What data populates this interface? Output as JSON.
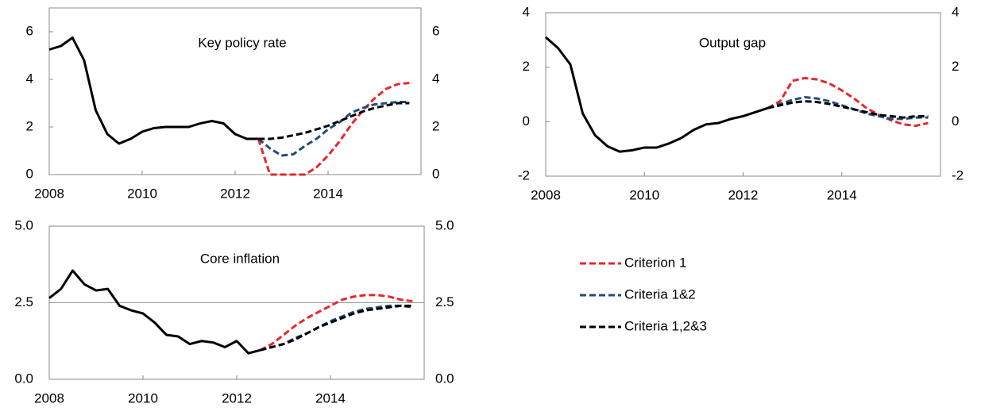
{
  "chart_data": [
    {
      "type": "line",
      "title": "Key policy rate",
      "x": [
        2008,
        2008.25,
        2008.5,
        2008.75,
        2009,
        2009.25,
        2009.5,
        2009.75,
        2010,
        2010.25,
        2010.5,
        2010.75,
        2011,
        2011.25,
        2011.5,
        2011.75,
        2012,
        2012.25,
        2012.5,
        2012.75,
        2013,
        2013.25,
        2013.5,
        2013.75,
        2014,
        2014.25,
        2014.5,
        2014.75,
        2015,
        2015.25,
        2015.5,
        2015.75
      ],
      "xlim": [
        2008,
        2016
      ],
      "xticks": [
        2008,
        2010,
        2012,
        2014
      ],
      "ylim": [
        0,
        7
      ],
      "yticks": [
        0,
        2,
        4,
        6
      ],
      "series": [
        {
          "color": "#000000",
          "values": [
            5.25,
            5.4,
            5.75,
            4.8,
            2.7,
            1.7,
            1.3,
            1.5,
            1.8,
            1.95,
            2.0,
            2.0,
            2.0,
            2.15,
            2.25,
            2.15,
            1.7,
            1.5,
            1.5,
            null,
            null,
            null,
            null,
            null,
            null,
            null,
            null,
            null,
            null,
            null,
            null,
            null
          ]
        },
        {
          "color": "#e8262b",
          "dashed": true,
          "values": [
            null,
            null,
            null,
            null,
            null,
            null,
            null,
            null,
            null,
            null,
            null,
            null,
            null,
            null,
            null,
            null,
            null,
            null,
            1.5,
            0,
            0,
            0,
            0,
            0.3,
            0.8,
            1.4,
            2.1,
            2.7,
            3.2,
            3.6,
            3.8,
            3.85
          ]
        },
        {
          "color": "#1f4e79",
          "dashed": true,
          "values": [
            null,
            null,
            null,
            null,
            null,
            null,
            null,
            null,
            null,
            null,
            null,
            null,
            null,
            null,
            null,
            null,
            null,
            null,
            1.5,
            1.1,
            0.8,
            0.85,
            1.2,
            1.5,
            1.9,
            2.2,
            2.6,
            2.8,
            2.95,
            3.0,
            3.05,
            3.05
          ]
        },
        {
          "color": "#000000",
          "dashed": true,
          "values": [
            null,
            null,
            null,
            null,
            null,
            null,
            null,
            null,
            null,
            null,
            null,
            null,
            null,
            null,
            null,
            null,
            null,
            null,
            1.5,
            1.5,
            1.55,
            1.65,
            1.75,
            1.9,
            2.05,
            2.25,
            2.45,
            2.65,
            2.8,
            2.9,
            3.0,
            3.0
          ]
        }
      ]
    },
    {
      "type": "line",
      "title": "Output gap",
      "x": [
        2008,
        2008.25,
        2008.5,
        2008.75,
        2009,
        2009.25,
        2009.5,
        2009.75,
        2010,
        2010.25,
        2010.5,
        2010.75,
        2011,
        2011.25,
        2011.5,
        2011.75,
        2012,
        2012.25,
        2012.5,
        2012.75,
        2013,
        2013.25,
        2013.5,
        2013.75,
        2014,
        2014.25,
        2014.5,
        2014.75,
        2015,
        2015.25,
        2015.5,
        2015.75
      ],
      "xlim": [
        2008,
        2016
      ],
      "xticks": [
        2008,
        2010,
        2012,
        2014
      ],
      "ylim": [
        -2,
        4
      ],
      "yticks": [
        -2,
        0,
        2,
        4
      ],
      "series": [
        {
          "color": "#000000",
          "values": [
            3.1,
            2.7,
            2.1,
            0.3,
            -0.5,
            -0.9,
            -1.1,
            -1.05,
            -0.95,
            -0.95,
            -0.8,
            -0.6,
            -0.3,
            -0.1,
            -0.05,
            0.1,
            0.2,
            0.35,
            0.5,
            null,
            null,
            null,
            null,
            null,
            null,
            null,
            null,
            null,
            null,
            null,
            null,
            null
          ]
        },
        {
          "color": "#e8262b",
          "dashed": true,
          "values": [
            null,
            null,
            null,
            null,
            null,
            null,
            null,
            null,
            null,
            null,
            null,
            null,
            null,
            null,
            null,
            null,
            null,
            null,
            0.5,
            0.75,
            1.5,
            1.6,
            1.55,
            1.4,
            1.15,
            0.85,
            0.5,
            0.25,
            0.05,
            -0.1,
            -0.15,
            -0.05
          ]
        },
        {
          "color": "#1f4e79",
          "dashed": true,
          "values": [
            null,
            null,
            null,
            null,
            null,
            null,
            null,
            null,
            null,
            null,
            null,
            null,
            null,
            null,
            null,
            null,
            null,
            null,
            0.5,
            0.65,
            0.8,
            0.9,
            0.85,
            0.75,
            0.6,
            0.45,
            0.3,
            0.2,
            0.1,
            0.1,
            0.15,
            0.15
          ]
        },
        {
          "color": "#000000",
          "dashed": true,
          "values": [
            null,
            null,
            null,
            null,
            null,
            null,
            null,
            null,
            null,
            null,
            null,
            null,
            null,
            null,
            null,
            null,
            null,
            null,
            0.5,
            0.6,
            0.7,
            0.75,
            0.72,
            0.65,
            0.55,
            0.45,
            0.35,
            0.25,
            0.2,
            0.15,
            0.2,
            0.2
          ]
        }
      ]
    },
    {
      "type": "line",
      "title": "Core inflation",
      "x": [
        2008,
        2008.25,
        2008.5,
        2008.75,
        2009,
        2009.25,
        2009.5,
        2009.75,
        2010,
        2010.25,
        2010.5,
        2010.75,
        2011,
        2011.25,
        2011.5,
        2011.75,
        2012,
        2012.25,
        2012.5,
        2012.75,
        2013,
        2013.25,
        2013.5,
        2013.75,
        2014,
        2014.25,
        2014.5,
        2014.75,
        2015,
        2015.25,
        2015.5,
        2015.75
      ],
      "xlim": [
        2008,
        2016
      ],
      "xticks": [
        2008,
        2010,
        2012,
        2014
      ],
      "ylim": [
        0,
        5
      ],
      "yticks": [
        {
          "value": 0,
          "label": "0.0"
        },
        {
          "value": 2.5,
          "label": "2.5"
        },
        {
          "value": 5,
          "label": "5.0"
        }
      ],
      "reference_line": 2.5,
      "series": [
        {
          "color": "#000000",
          "values": [
            2.65,
            2.95,
            3.55,
            3.1,
            2.9,
            2.95,
            2.4,
            2.25,
            2.15,
            1.85,
            1.45,
            1.4,
            1.15,
            1.25,
            1.2,
            1.05,
            1.25,
            0.85,
            0.95,
            null,
            null,
            null,
            null,
            null,
            null,
            null,
            null,
            null,
            null,
            null,
            null,
            null
          ]
        },
        {
          "color": "#e8262b",
          "dashed": true,
          "values": [
            null,
            null,
            null,
            null,
            null,
            null,
            null,
            null,
            null,
            null,
            null,
            null,
            null,
            null,
            null,
            null,
            null,
            null,
            0.95,
            1.15,
            1.45,
            1.75,
            2.0,
            2.2,
            2.4,
            2.6,
            2.7,
            2.75,
            2.75,
            2.7,
            2.6,
            2.55
          ]
        },
        {
          "color": "#1f4e79",
          "dashed": true,
          "values": [
            null,
            null,
            null,
            null,
            null,
            null,
            null,
            null,
            null,
            null,
            null,
            null,
            null,
            null,
            null,
            null,
            null,
            null,
            0.95,
            1.05,
            1.15,
            1.35,
            1.5,
            1.7,
            1.9,
            2.05,
            2.2,
            2.3,
            2.35,
            2.4,
            2.4,
            2.35
          ]
        },
        {
          "color": "#000000",
          "dashed": true,
          "values": [
            null,
            null,
            null,
            null,
            null,
            null,
            null,
            null,
            null,
            null,
            null,
            null,
            null,
            null,
            null,
            null,
            null,
            null,
            0.95,
            1.05,
            1.15,
            1.3,
            1.5,
            1.7,
            1.85,
            2.0,
            2.15,
            2.25,
            2.3,
            2.35,
            2.4,
            2.4
          ]
        }
      ]
    }
  ],
  "legend": [
    {
      "name": "Criterion 1",
      "color": "#e8262b",
      "dashed": true
    },
    {
      "name": "Criteria 1&2",
      "color": "#1f4e79",
      "dashed": true
    },
    {
      "name": "Criteria 1,2&3",
      "color": "#000000",
      "dashed": true
    }
  ]
}
